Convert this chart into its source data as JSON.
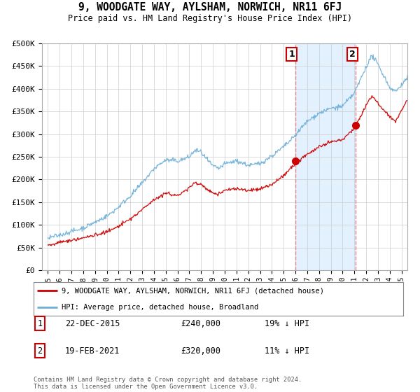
{
  "title": "9, WOODGATE WAY, AYLSHAM, NORWICH, NR11 6FJ",
  "subtitle": "Price paid vs. HM Land Registry's House Price Index (HPI)",
  "legend_line1": "9, WOODGATE WAY, AYLSHAM, NORWICH, NR11 6FJ (detached house)",
  "legend_line2": "HPI: Average price, detached house, Broadland",
  "transaction1_label": "1",
  "transaction1_date": "22-DEC-2015",
  "transaction1_price": "£240,000",
  "transaction1_hpi": "19% ↓ HPI",
  "transaction2_label": "2",
  "transaction2_date": "19-FEB-2021",
  "transaction2_price": "£320,000",
  "transaction2_hpi": "11% ↓ HPI",
  "footer": "Contains HM Land Registry data © Crown copyright and database right 2024.\nThis data is licensed under the Open Government Licence v3.0.",
  "hpi_color": "#6baed6",
  "price_color": "#cc0000",
  "vline_color": "#e08080",
  "marker1_x": 2015.97,
  "marker1_y": 240000,
  "marker2_x": 2021.12,
  "marker2_y": 320000,
  "shade_color": "#ddeeff",
  "ylim": [
    0,
    500000
  ],
  "xlim_start": 1994.5,
  "xlim_end": 2025.5,
  "background_color": "#ffffff",
  "grid_color": "#cccccc"
}
